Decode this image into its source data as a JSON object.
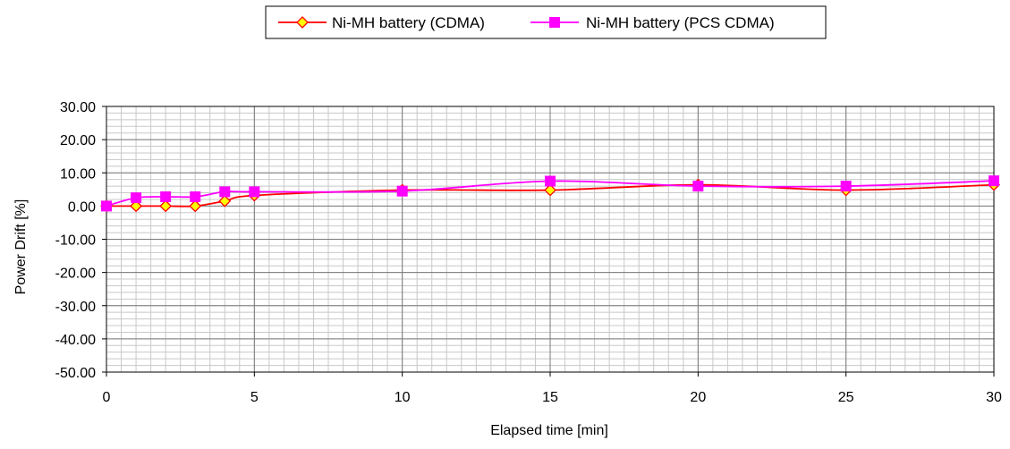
{
  "chart_data": {
    "type": "line",
    "title": "",
    "xlabel": "Elapsed time [min]",
    "ylabel": "Power Drift [%]",
    "xlim": [
      0,
      30
    ],
    "ylim": [
      -50,
      30
    ],
    "xticks": [
      0,
      5,
      10,
      15,
      20,
      25,
      30
    ],
    "yticks": [
      30,
      20,
      10,
      0,
      -10,
      -20,
      -30,
      -40,
      -50
    ],
    "ytick_labels": [
      "30.00",
      "20.00",
      "10.00",
      "0.00",
      "-10.00",
      "-20.00",
      "-30.00",
      "-40.00",
      "-50.00"
    ],
    "xtick_labels": [
      "0",
      "5",
      "10",
      "15",
      "20",
      "25",
      "30"
    ],
    "grid": true,
    "legend_position": "top-center",
    "series": [
      {
        "name": "Ni-MH battery (CDMA)",
        "color": "#ff0000",
        "marker": "diamond",
        "marker_fill": "#ffff00",
        "x": [
          0,
          1,
          2,
          3,
          4,
          5,
          10,
          15,
          20,
          25,
          30
        ],
        "y": [
          0.0,
          0.0,
          0.0,
          0.0,
          1.5,
          3.2,
          4.8,
          4.8,
          6.4,
          4.8,
          6.4
        ]
      },
      {
        "name": "Ni-MH battery (PCS CDMA)",
        "color": "#ff00ff",
        "marker": "square",
        "marker_fill": "#ff00ff",
        "x": [
          0,
          1,
          2,
          3,
          4,
          5,
          10,
          15,
          20,
          25,
          30
        ],
        "y": [
          0.0,
          2.5,
          2.8,
          2.8,
          4.3,
          4.3,
          4.5,
          7.5,
          6.0,
          6.0,
          7.6
        ]
      }
    ]
  }
}
